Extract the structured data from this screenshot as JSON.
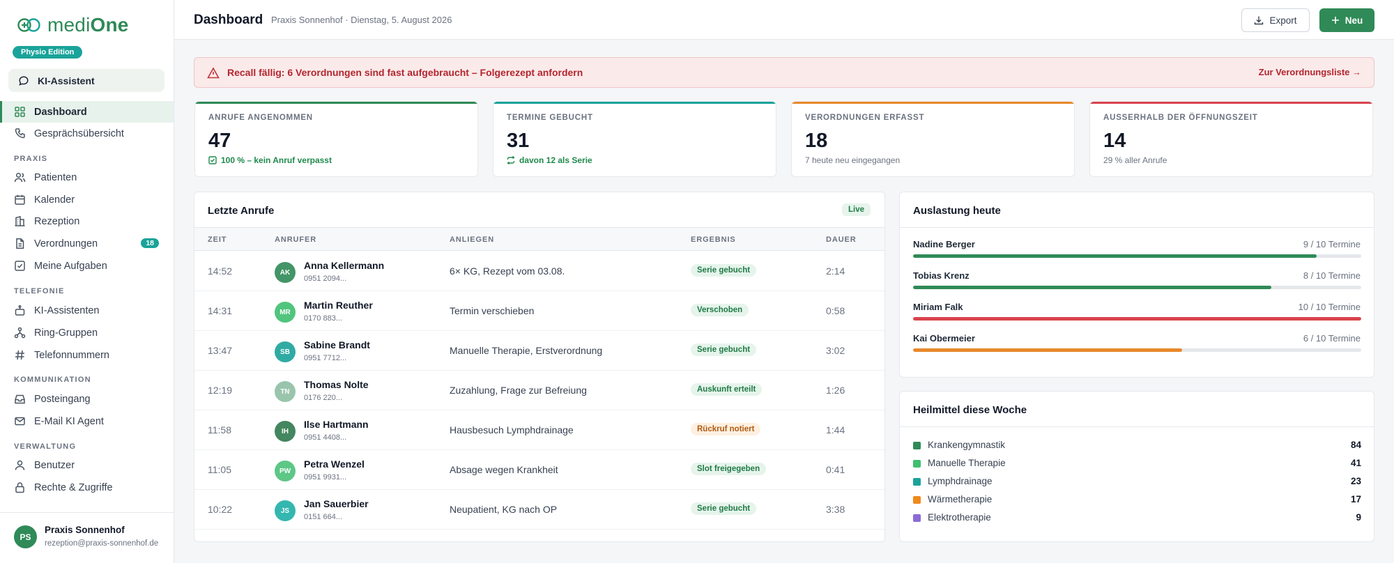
{
  "brand": {
    "name_light": "medi",
    "name_bold": "One",
    "edition": "Physio Edition"
  },
  "sidebar": {
    "ki_button": "KI-Assistent",
    "items": [
      {
        "label": "Dashboard",
        "icon": "grid-icon",
        "active": true
      },
      {
        "label": "Gesprächsübersicht",
        "icon": "phone-icon"
      }
    ],
    "sections": [
      {
        "title": "PRAXIS",
        "items": [
          {
            "label": "Patienten",
            "icon": "users-icon"
          },
          {
            "label": "Kalender",
            "icon": "calendar-icon"
          },
          {
            "label": "Rezeption",
            "icon": "building-icon"
          },
          {
            "label": "Verordnungen",
            "icon": "document-icon",
            "badge": "18"
          },
          {
            "label": "Meine Aufgaben",
            "icon": "checkbox-icon"
          }
        ]
      },
      {
        "title": "TELEFONIE",
        "items": [
          {
            "label": "KI-Assistenten",
            "icon": "bot-icon"
          },
          {
            "label": "Ring-Gruppen",
            "icon": "network-icon"
          },
          {
            "label": "Telefonnummern",
            "icon": "hash-icon"
          }
        ]
      },
      {
        "title": "KOMMUNIKATION",
        "items": [
          {
            "label": "Posteingang",
            "icon": "inbox-icon"
          },
          {
            "label": "E-Mail KI Agent",
            "icon": "mail-icon"
          }
        ]
      },
      {
        "title": "VERWALTUNG",
        "items": [
          {
            "label": "Benutzer",
            "icon": "user-icon"
          },
          {
            "label": "Rechte & Zugriffe",
            "icon": "lock-icon"
          }
        ]
      }
    ],
    "profile": {
      "initials": "PS",
      "name": "Praxis Sonnenhof",
      "email": "rezeption@praxis-sonnenhof.de"
    }
  },
  "header": {
    "title": "Dashboard",
    "subtitle": "Praxis Sonnenhof · Dienstag, 5. August 2026",
    "export_label": "Export",
    "new_label": "Neu"
  },
  "alert": {
    "text": "Recall fällig: 6 Verordnungen sind fast aufgebraucht – Folgerezept anfordern",
    "link": "Zur Verordnungsliste →"
  },
  "kpis": [
    {
      "label": "ANRUFE ANGENOMMEN",
      "value": "47",
      "note": "100 % – kein Anruf verpasst",
      "note_style": "green",
      "note_icon": "check-icon",
      "accent": "#2f8a57"
    },
    {
      "label": "TERMINE GEBUCHT",
      "value": "31",
      "note": "davon 12 als Serie",
      "note_style": "green",
      "note_icon": "repeat-icon",
      "accent": "#1aa39a"
    },
    {
      "label": "VERORDNUNGEN ERFASST",
      "value": "18",
      "note": "7 heute neu eingegangen",
      "note_style": "grey",
      "note_icon": "",
      "accent": "#e8892b"
    },
    {
      "label": "AUSSERHALB DER ÖFFNUNGSZEIT",
      "value": "14",
      "note": "29 % aller Anrufe",
      "note_style": "grey",
      "note_icon": "",
      "accent": "#d9434d"
    }
  ],
  "calls": {
    "title": "Letzte Anrufe",
    "live": "Live",
    "columns": [
      "ZEIT",
      "ANRUFER",
      "ANLIEGEN",
      "ERGEBNIS",
      "DAUER"
    ],
    "rows": [
      {
        "time": "14:52",
        "initials": "AK",
        "color": "#2f8a57",
        "name": "Anna Kellermann",
        "phone": "0951 2094...",
        "concern": "6× KG, Rezept vom 03.08.",
        "result": "Serie gebucht",
        "result_style": "green",
        "duration": "2:14"
      },
      {
        "time": "14:31",
        "initials": "MR",
        "color": "#3fbf6f",
        "name": "Martin Reuther",
        "phone": "0170 883...",
        "concern": "Termin verschieben",
        "result": "Verschoben",
        "result_style": "green",
        "duration": "0:58"
      },
      {
        "time": "13:47",
        "initials": "SB",
        "color": "#1aa39a",
        "name": "Sabine Brandt",
        "phone": "0951 7712...",
        "concern": "Manuelle Therapie, Erstverordnung",
        "result": "Serie gebucht",
        "result_style": "green",
        "duration": "3:02"
      },
      {
        "time": "12:19",
        "initials": "TN",
        "color": "#8fbfa4",
        "name": "Thomas Nolte",
        "phone": "0176 220...",
        "concern": "Zuzahlung, Frage zur Befreiung",
        "result": "Auskunft erteilt",
        "result_style": "green",
        "duration": "1:26"
      },
      {
        "time": "11:58",
        "initials": "IH",
        "color": "#2f7a4e",
        "name": "Ilse Hartmann",
        "phone": "0951 4408...",
        "concern": "Hausbesuch Lymphdrainage",
        "result": "Rückruf notiert",
        "result_style": "orange",
        "duration": "1:44"
      },
      {
        "time": "11:05",
        "initials": "PW",
        "color": "#4cc27a",
        "name": "Petra Wenzel",
        "phone": "0951 9931...",
        "concern": "Absage wegen Krankheit",
        "result": "Slot freigegeben",
        "result_style": "green",
        "duration": "0:41"
      },
      {
        "time": "10:22",
        "initials": "JS",
        "color": "#1fb0a8",
        "name": "Jan Sauerbier",
        "phone": "0151 664...",
        "concern": "Neupatient, KG nach OP",
        "result": "Serie gebucht",
        "result_style": "green",
        "duration": "3:38"
      }
    ]
  },
  "load": {
    "title": "Auslastung heute",
    "rows": [
      {
        "name": "Nadine Berger",
        "value": "9 / 10 Termine",
        "fraction": 0.9,
        "color": "#2f8a57"
      },
      {
        "name": "Tobias Krenz",
        "value": "8 / 10 Termine",
        "fraction": 0.8,
        "color": "#2f8a57"
      },
      {
        "name": "Miriam Falk",
        "value": "10 / 10 Termine",
        "fraction": 1.0,
        "color": "#d9434d"
      },
      {
        "name": "Kai Obermeier",
        "value": "6 / 10 Termine",
        "fraction": 0.6,
        "color": "#e8892b"
      }
    ]
  },
  "remedies": {
    "title": "Heilmittel diese Woche",
    "rows": [
      {
        "label": "Krankengymnastik",
        "count": "84",
        "color": "#2f8a57"
      },
      {
        "label": "Manuelle Therapie",
        "count": "41",
        "color": "#3fbf6f"
      },
      {
        "label": "Lymphdrainage",
        "count": "23",
        "color": "#1aa39a"
      },
      {
        "label": "Wärmetherapie",
        "count": "17",
        "color": "#f08a1c"
      },
      {
        "label": "Elektrotherapie",
        "count": "9",
        "color": "#8b6bd6"
      }
    ]
  }
}
